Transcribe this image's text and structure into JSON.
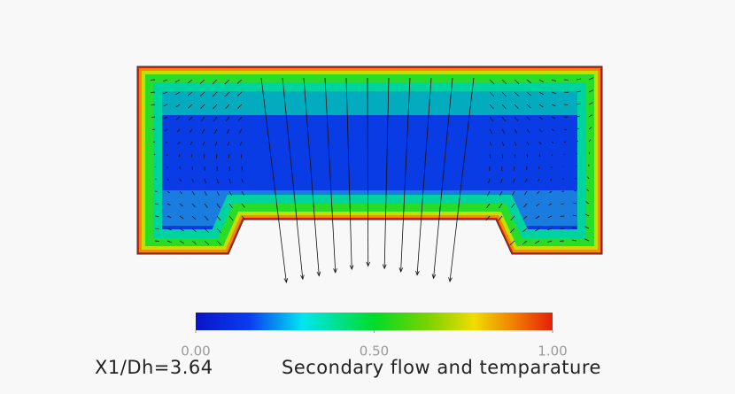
{
  "figure": {
    "position_label": "X1/Dh=3.64",
    "caption": "Secondary flow and temparature",
    "colorbar": {
      "range": [
        0,
        1
      ],
      "ticks": [
        {
          "value": 0,
          "label": "0.00"
        },
        {
          "value": 0.5,
          "label": "0.50"
        },
        {
          "value": 1,
          "label": "1.00"
        }
      ]
    }
  }
}
